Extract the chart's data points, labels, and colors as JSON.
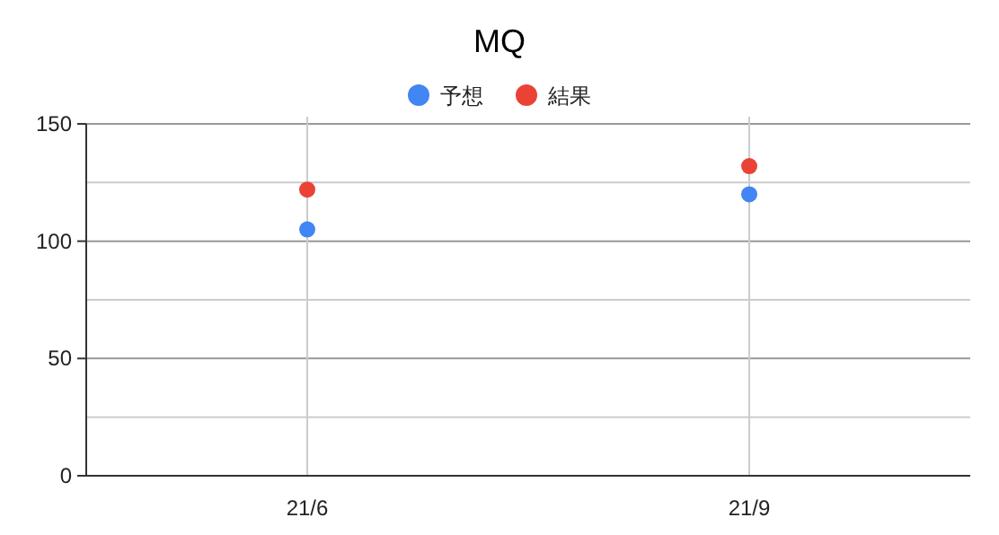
{
  "chart_data": {
    "type": "scatter",
    "title": "MQ",
    "categories": [
      "21/6",
      "21/9"
    ],
    "series": [
      {
        "name": "予想",
        "color": "#4285f4",
        "values": [
          105,
          120
        ]
      },
      {
        "name": "結果",
        "color": "#ea4335",
        "values": [
          122,
          132
        ]
      }
    ],
    "ylim": [
      0,
      150
    ],
    "yticks": [
      0,
      {
        "value": 25,
        "label": null
      },
      50,
      {
        "value": 75,
        "label": null
      },
      100,
      {
        "value": 125,
        "label": null
      },
      150
    ],
    "grid": true,
    "legend": "top",
    "marker": "circle"
  }
}
